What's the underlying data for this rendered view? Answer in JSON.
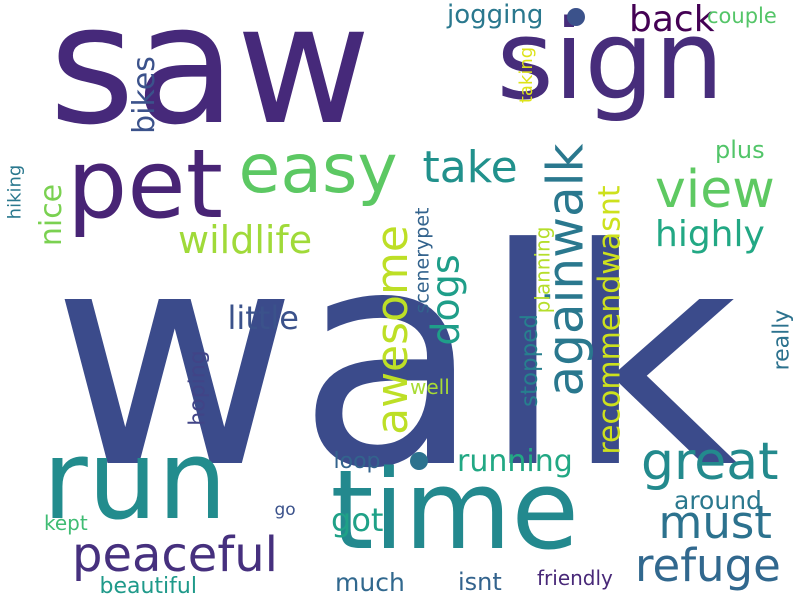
{
  "words": [
    {
      "text": "walk",
      "color": "#3b4b8b",
      "rotate": 0
    },
    {
      "text": "saw",
      "color": "#46297a",
      "rotate": 0
    },
    {
      "text": "sign",
      "color": "#472d7b",
      "rotate": 0
    },
    {
      "text": "run",
      "color": "#228c8d",
      "rotate": 0
    },
    {
      "text": "time",
      "color": "#23898e",
      "rotate": 0
    },
    {
      "text": "pet",
      "color": "#482475",
      "rotate": 0
    },
    {
      "text": "easy",
      "color": "#5cc863",
      "rotate": 0
    },
    {
      "text": "againwalk",
      "color": "#2a788e",
      "rotate": -90
    },
    {
      "text": "awesome",
      "color": "#bddf26",
      "rotate": -90
    },
    {
      "text": "take",
      "color": "#21918c",
      "rotate": 0
    },
    {
      "text": "view",
      "color": "#5ec962",
      "rotate": 0
    },
    {
      "text": "wildlife",
      "color": "#a0da39",
      "rotate": 0
    },
    {
      "text": "great",
      "color": "#238a8d",
      "rotate": 0
    },
    {
      "text": "must",
      "color": "#2c728e",
      "rotate": 0
    },
    {
      "text": "refuge",
      "color": "#31688e",
      "rotate": 0
    },
    {
      "text": "peaceful",
      "color": "#46307e",
      "rotate": 0
    },
    {
      "text": "dogs",
      "color": "#1f9e89",
      "rotate": -90
    },
    {
      "text": "highly",
      "color": "#22a884",
      "rotate": 0
    },
    {
      "text": "recommendwasnt",
      "color": "#cde11d",
      "rotate": -90
    },
    {
      "text": "back",
      "color": "#440154",
      "rotate": 0
    },
    {
      "text": "little",
      "color": "#3b528b",
      "rotate": 0
    },
    {
      "text": "running",
      "color": "#22a884",
      "rotate": 0
    },
    {
      "text": "got",
      "color": "#1fa187",
      "rotate": 0
    },
    {
      "text": "jogging",
      "color": "#2a788e",
      "rotate": 0
    },
    {
      "text": "bikes",
      "color": "#3b528b",
      "rotate": -90
    },
    {
      "text": "nice",
      "color": "#7ad151",
      "rotate": -90
    },
    {
      "text": "plus",
      "color": "#52c569",
      "rotate": 0
    },
    {
      "text": "couple",
      "color": "#54c568",
      "rotate": 0
    },
    {
      "text": "taking",
      "color": "#dde318",
      "rotate": -90
    },
    {
      "text": "around",
      "color": "#2a788e",
      "rotate": 0
    },
    {
      "text": "much",
      "color": "#31688e",
      "rotate": 0
    },
    {
      "text": "isnt",
      "color": "#33638d",
      "rotate": 0
    },
    {
      "text": "friendly",
      "color": "#482878",
      "rotate": 0
    },
    {
      "text": "beautiful",
      "color": "#1f9a8a",
      "rotate": 0
    },
    {
      "text": "kept",
      "color": "#3fbc73",
      "rotate": 0
    },
    {
      "text": "go",
      "color": "#3b528b",
      "rotate": 0
    },
    {
      "text": "loop",
      "color": "#33638d",
      "rotate": 0
    },
    {
      "text": "well",
      "color": "#a8db34",
      "rotate": 0
    },
    {
      "text": "hoping",
      "color": "#414487",
      "rotate": -90
    },
    {
      "text": "stopped",
      "color": "#277f8e",
      "rotate": -90
    },
    {
      "text": "planning",
      "color": "#b5de2b",
      "rotate": -90
    },
    {
      "text": "scenerypet",
      "color": "#33638d",
      "rotate": -90
    },
    {
      "text": "hiking",
      "color": "#2a788e",
      "rotate": -90
    },
    {
      "text": "really",
      "color": "#2c728e",
      "rotate": -90
    }
  ],
  "dots": [
    {
      "color": "#3b528b"
    },
    {
      "color": "#2c728e"
    }
  ]
}
